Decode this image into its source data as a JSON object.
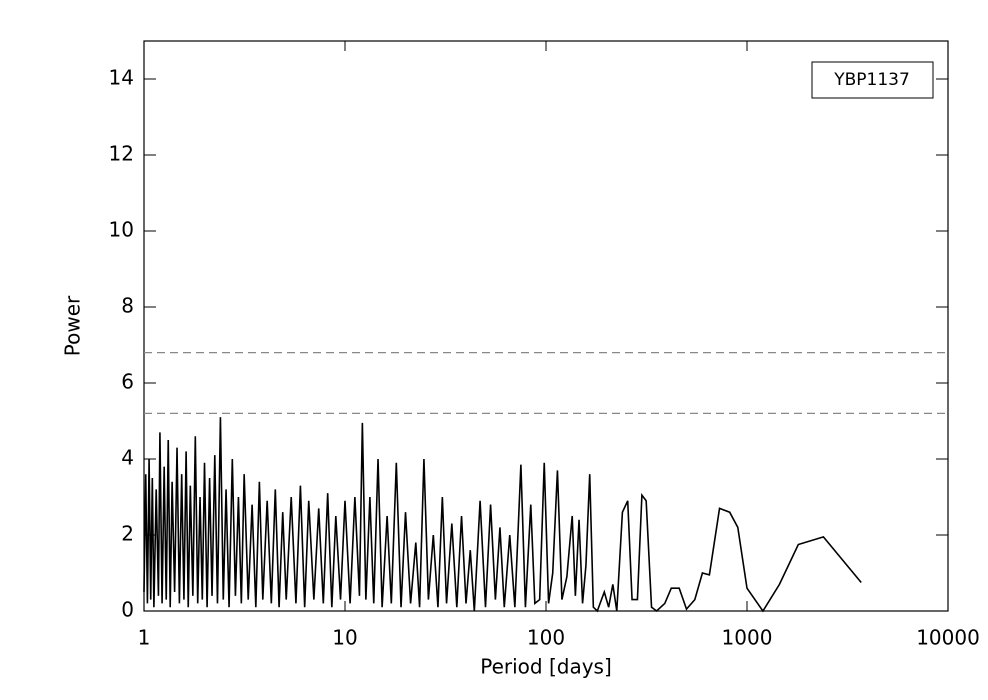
{
  "chart_data": {
    "type": "line",
    "xscale": "log",
    "xlabel": "Period [days]",
    "ylabel": "Power",
    "xlim": [
      1,
      10000
    ],
    "ylim": [
      0,
      15
    ],
    "xticks": [
      1,
      10,
      100,
      1000,
      10000
    ],
    "yticks": [
      0,
      2,
      4,
      6,
      8,
      10,
      12,
      14
    ],
    "hlines": [
      6.8,
      5.2
    ],
    "hline_color": "#888888",
    "legend": "upper right",
    "series": [
      {
        "name": "YBP1137",
        "color": "#000000",
        "x": [
          1.0,
          1.02,
          1.04,
          1.06,
          1.08,
          1.1,
          1.12,
          1.15,
          1.18,
          1.2,
          1.23,
          1.26,
          1.29,
          1.32,
          1.35,
          1.38,
          1.42,
          1.46,
          1.5,
          1.54,
          1.58,
          1.62,
          1.66,
          1.7,
          1.75,
          1.8,
          1.85,
          1.9,
          1.95,
          2.0,
          2.06,
          2.12,
          2.18,
          2.25,
          2.32,
          2.4,
          2.48,
          2.56,
          2.65,
          2.75,
          2.85,
          2.95,
          3.05,
          3.15,
          3.3,
          3.45,
          3.6,
          3.75,
          3.9,
          4.1,
          4.3,
          4.5,
          4.7,
          4.9,
          5.1,
          5.4,
          5.7,
          6.0,
          6.3,
          6.6,
          7.0,
          7.4,
          7.8,
          8.2,
          8.6,
          9.0,
          9.5,
          10.0,
          10.6,
          11.2,
          11.8,
          12.2,
          12.7,
          13.3,
          13.9,
          14.6,
          15.3,
          16.2,
          17.0,
          18.0,
          19.0,
          20.0,
          21.2,
          22.5,
          23.5,
          24.7,
          26.0,
          27.5,
          29.0,
          30.5,
          32,
          34,
          36,
          38,
          40,
          42,
          44,
          47,
          50,
          53,
          56,
          59,
          62,
          66,
          70,
          75,
          79,
          84,
          88,
          93,
          98,
          103,
          108,
          114,
          120,
          127,
          135,
          140,
          146,
          152,
          158,
          165,
          172,
          180,
          195,
          205,
          215,
          225,
          240,
          255,
          268,
          285,
          300,
          315,
          335,
          355,
          390,
          420,
          460,
          500,
          550,
          600,
          650,
          730,
          820,
          900,
          1000,
          1200,
          1450,
          1800,
          2400,
          3700
        ],
        "values": [
          0.5,
          3.6,
          0.2,
          4.0,
          0.3,
          3.5,
          0.1,
          3.2,
          0.4,
          4.7,
          0.2,
          3.8,
          0.3,
          4.5,
          0.1,
          3.4,
          0.5,
          4.3,
          0.2,
          3.6,
          0.3,
          4.2,
          0.1,
          3.3,
          0.4,
          4.6,
          0.2,
          3.0,
          0.3,
          3.9,
          0.1,
          3.5,
          0.4,
          4.1,
          0.2,
          5.1,
          0.3,
          3.2,
          0.1,
          4.0,
          0.4,
          3.0,
          0.2,
          3.6,
          0.3,
          2.8,
          0.1,
          3.4,
          0.3,
          2.9,
          0.2,
          3.2,
          0.1,
          2.6,
          0.3,
          3.0,
          0.2,
          3.3,
          0.1,
          2.9,
          0.3,
          2.7,
          0.2,
          3.1,
          0.1,
          2.5,
          0.3,
          2.9,
          0.2,
          3.0,
          0.4,
          4.95,
          0.3,
          3.0,
          0.2,
          4.0,
          0.1,
          2.5,
          0.2,
          3.9,
          0.1,
          2.6,
          0.2,
          1.8,
          0.1,
          4.0,
          0.3,
          2.0,
          0.1,
          3.0,
          0.2,
          2.3,
          0.1,
          2.5,
          0.2,
          1.6,
          0.0,
          2.9,
          0.1,
          2.8,
          0.3,
          2.2,
          0.1,
          2.0,
          0.1,
          3.85,
          0.1,
          2.8,
          0.2,
          0.3,
          3.9,
          0.2,
          1.0,
          3.7,
          0.3,
          0.9,
          2.5,
          0.4,
          2.4,
          0.2,
          1.2,
          3.6,
          0.1,
          0.0,
          0.5,
          0.1,
          0.7,
          0.0,
          2.6,
          2.9,
          0.3,
          0.3,
          3.05,
          2.9,
          0.1,
          0.0,
          0.2,
          0.6,
          0.6,
          0.05,
          0.3,
          1.0,
          0.95,
          2.7,
          2.6,
          2.2,
          0.6,
          0.0,
          0.7,
          1.75,
          1.95,
          0.75
        ]
      }
    ]
  }
}
